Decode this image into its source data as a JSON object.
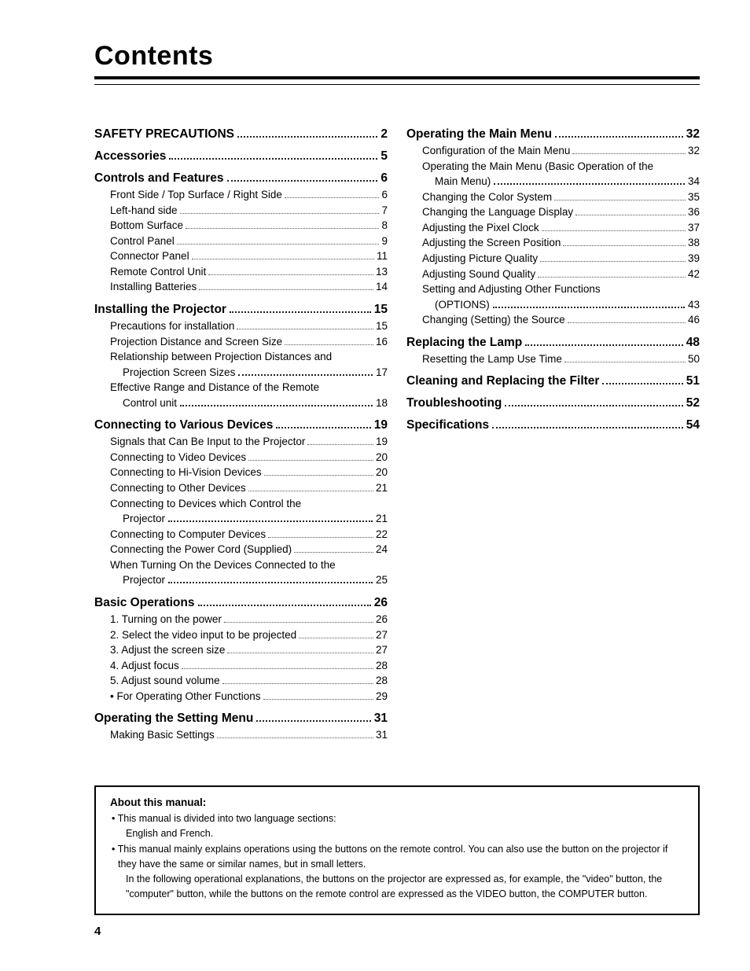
{
  "title": "Contents",
  "page_number": "4",
  "left_column": [
    {
      "type": "section",
      "label": "SAFETY PRECAUTIONS",
      "page": "2"
    },
    {
      "type": "section",
      "label": "Accessories",
      "page": "5"
    },
    {
      "type": "section",
      "label": "Controls and Features",
      "page": "6"
    },
    {
      "type": "sub",
      "label": "Front Side / Top Surface / Right Side",
      "page": "6"
    },
    {
      "type": "sub",
      "label": "Left-hand side",
      "page": "7"
    },
    {
      "type": "sub",
      "label": "Bottom Surface",
      "page": "8"
    },
    {
      "type": "sub",
      "label": "Control Panel",
      "page": "9"
    },
    {
      "type": "sub",
      "label": "Connector Panel",
      "page": "11"
    },
    {
      "type": "sub",
      "label": "Remote Control Unit",
      "page": "13"
    },
    {
      "type": "sub",
      "label": "Installing Batteries",
      "page": "14"
    },
    {
      "type": "section",
      "label": "Installing the Projector",
      "page": "15"
    },
    {
      "type": "sub",
      "label": "Precautions for installation",
      "page": "15"
    },
    {
      "type": "sub",
      "label": "Projection Distance and Screen Size",
      "page": "16"
    },
    {
      "type": "sub-nowrap",
      "label": "Relationship between Projection Distances and"
    },
    {
      "type": "sub-wrapped",
      "label": "Projection Screen Sizes",
      "page": "17"
    },
    {
      "type": "sub-nowrap",
      "label": "Effective Range and Distance of the Remote"
    },
    {
      "type": "sub-wrapped",
      "label": "Control unit",
      "page": "18"
    },
    {
      "type": "section",
      "label": "Connecting to Various Devices",
      "page": "19"
    },
    {
      "type": "sub",
      "label": "Signals that Can Be Input to the Projector",
      "page": "19"
    },
    {
      "type": "sub",
      "label": "Connecting to Video Devices",
      "page": "20"
    },
    {
      "type": "sub",
      "label": "Connecting to Hi-Vision Devices",
      "page": "20"
    },
    {
      "type": "sub",
      "label": "Connecting to Other Devices",
      "page": "21"
    },
    {
      "type": "sub-nowrap",
      "label": "Connecting to Devices which Control the"
    },
    {
      "type": "sub-wrapped",
      "label": "Projector",
      "page": "21"
    },
    {
      "type": "sub",
      "label": "Connecting to Computer Devices",
      "page": "22"
    },
    {
      "type": "sub",
      "label": "Connecting the Power Cord (Supplied)",
      "page": "24"
    },
    {
      "type": "sub-nowrap",
      "label": "When Turning On the Devices Connected to the"
    },
    {
      "type": "sub-wrapped",
      "label": "Projector",
      "page": "25"
    },
    {
      "type": "section",
      "label": "Basic Operations",
      "page": "26"
    },
    {
      "type": "sub",
      "label": "1. Turning on the power",
      "page": "26"
    },
    {
      "type": "sub",
      "label": "2. Select the video input to be projected",
      "page": "27"
    },
    {
      "type": "sub",
      "label": "3. Adjust the screen size",
      "page": "27"
    },
    {
      "type": "sub",
      "label": "4. Adjust focus",
      "page": "28"
    },
    {
      "type": "sub",
      "label": "5. Adjust sound volume",
      "page": "28"
    },
    {
      "type": "sub",
      "label": "• For Operating Other Functions",
      "page": "29"
    },
    {
      "type": "section",
      "label": "Operating the Setting Menu",
      "page": "31"
    },
    {
      "type": "sub",
      "label": "Making Basic Settings",
      "page": "31"
    }
  ],
  "right_column": [
    {
      "type": "section",
      "label": "Operating the Main Menu",
      "page": "32"
    },
    {
      "type": "sub",
      "label": "Configuration of the Main Menu",
      "page": "32"
    },
    {
      "type": "sub-nowrap",
      "label": "Operating the Main Menu (Basic Operation of the"
    },
    {
      "type": "sub-wrapped",
      "label": "Main Menu)",
      "page": "34"
    },
    {
      "type": "sub",
      "label": "Changing the Color System",
      "page": "35"
    },
    {
      "type": "sub",
      "label": "Changing the Language Display",
      "page": "36"
    },
    {
      "type": "sub",
      "label": "Adjusting the Pixel Clock",
      "page": "37"
    },
    {
      "type": "sub",
      "label": "Adjusting the Screen Position",
      "page": "38"
    },
    {
      "type": "sub",
      "label": "Adjusting Picture Quality",
      "page": "39"
    },
    {
      "type": "sub",
      "label": "Adjusting Sound Quality",
      "page": "42"
    },
    {
      "type": "sub-nowrap",
      "label": "Setting and Adjusting Other Functions"
    },
    {
      "type": "sub-wrapped",
      "label": "(OPTIONS)",
      "page": "43"
    },
    {
      "type": "sub",
      "label": "Changing (Setting) the Source",
      "page": "46"
    },
    {
      "type": "section",
      "label": "Replacing the Lamp",
      "page": "48"
    },
    {
      "type": "sub",
      "label": "Resetting the Lamp Use Time",
      "page": "50"
    },
    {
      "type": "section",
      "label": "Cleaning and Replacing the Filter",
      "page": "51"
    },
    {
      "type": "section",
      "label": "Troubleshooting",
      "page": "52"
    },
    {
      "type": "section",
      "label": "Specifications",
      "page": "54"
    }
  ],
  "about": {
    "title": "About this manual:",
    "bullet1": "This manual is divided into two language sections:",
    "bullet1_sub": "English and French.",
    "bullet2": "This manual mainly explains operations using the buttons on the remote control. You can also use the button on the projector if they have the same or similar names, but in small letters.",
    "bullet2_sub": "In the following operational explanations, the buttons on the projector are expressed as, for example, the \"video\" button, the \"computer\" button, while the buttons on the remote control are expressed as the VIDEO button, the COMPUTER button."
  }
}
